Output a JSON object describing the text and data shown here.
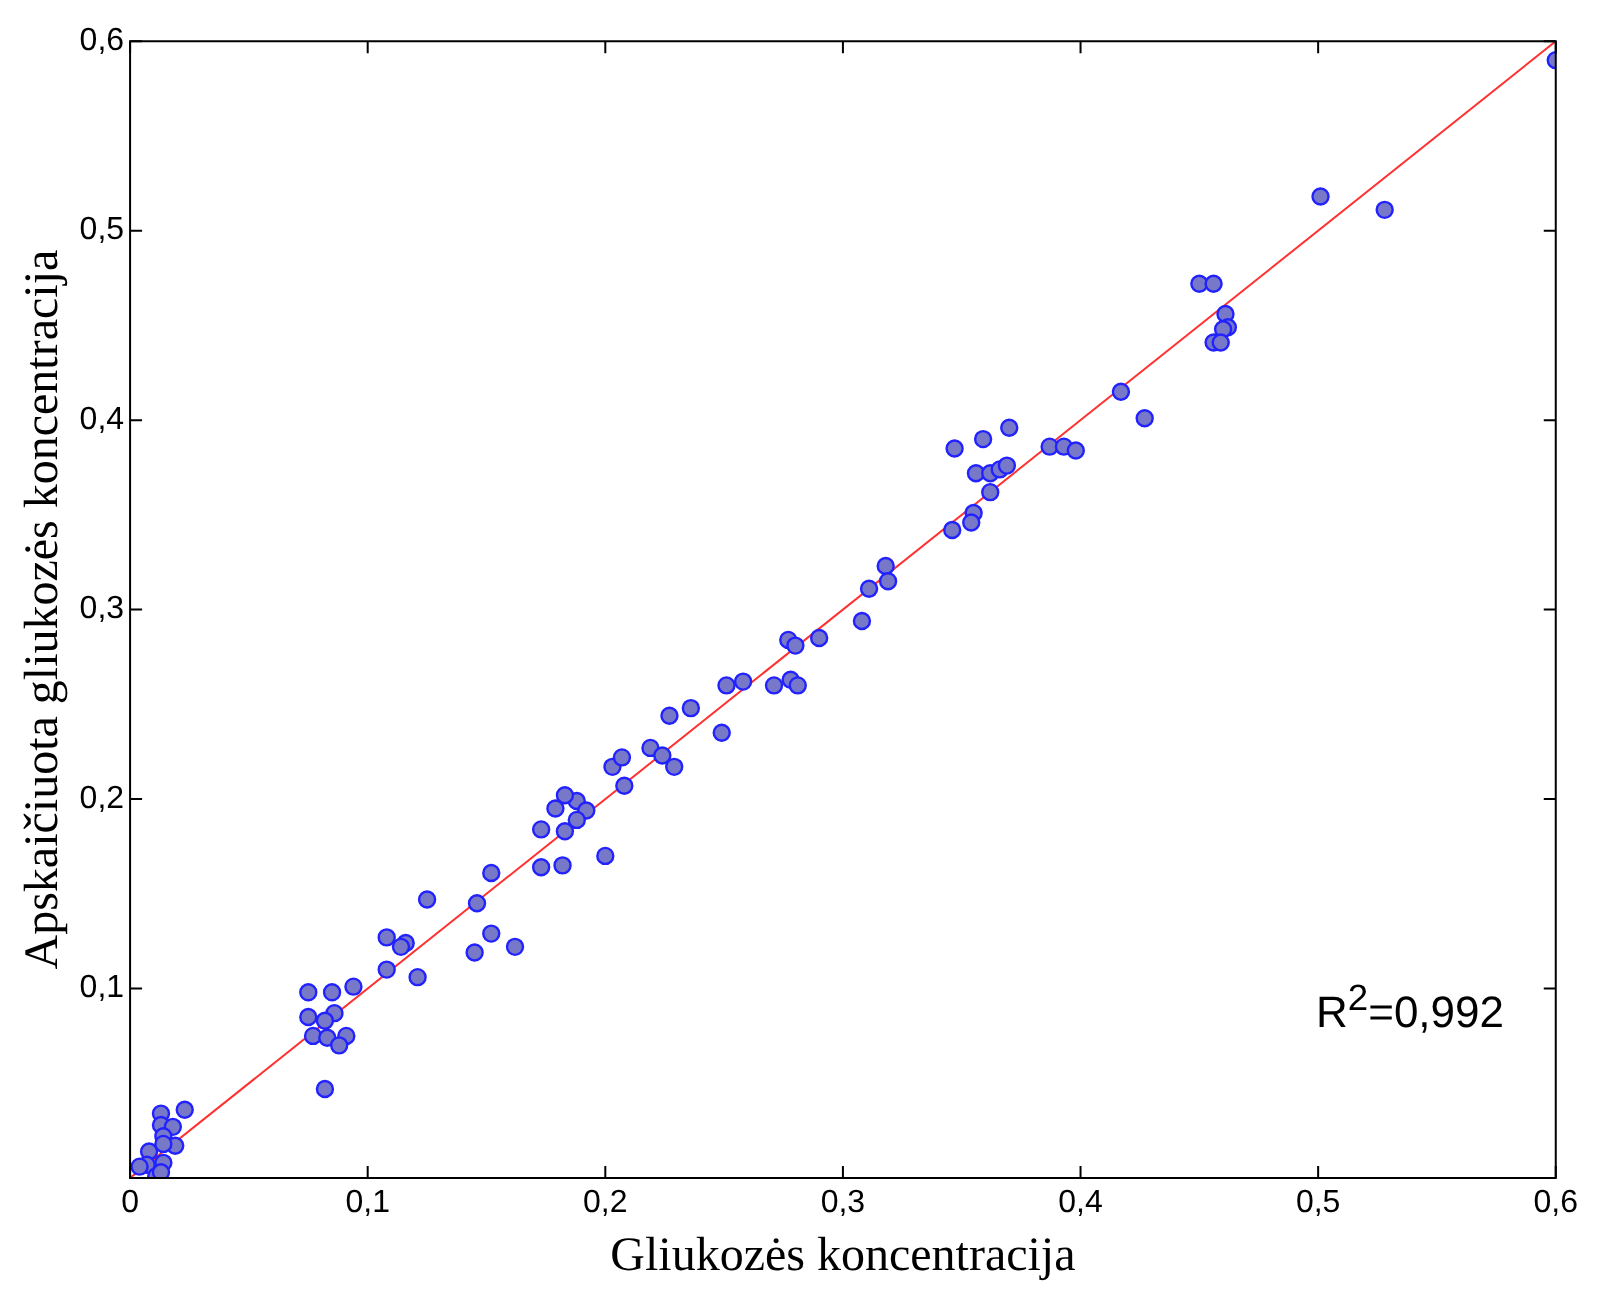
{
  "chart_data": {
    "type": "scatter",
    "xlabel": "Gliukozės koncentracija",
    "ylabel": "Apskaičiuota gliukozės koncentracija",
    "xlim": [
      0,
      0.6
    ],
    "ylim": [
      0,
      0.6
    ],
    "xticks": [
      0,
      {
        "value": 0.1,
        "label": "0,1"
      },
      {
        "value": 0.2,
        "label": "0,2"
      },
      {
        "value": 0.3,
        "label": "0,3"
      },
      {
        "value": 0.4,
        "label": "0,4"
      },
      {
        "value": 0.5,
        "label": "0,5"
      },
      {
        "value": 0.6,
        "label": "0,6"
      }
    ],
    "yticks": [
      {
        "value": 0,
        "label": null
      },
      {
        "value": 0.1,
        "label": "0,1"
      },
      {
        "value": 0.2,
        "label": "0,2"
      },
      {
        "value": 0.3,
        "label": "0,3"
      },
      {
        "value": 0.4,
        "label": "0,4"
      },
      {
        "value": 0.5,
        "label": "0,5"
      },
      {
        "value": 0.6,
        "label": "0,6"
      }
    ],
    "grid": false,
    "legend": false,
    "annotations": [
      "R$^{2}$=0,992"
    ],
    "series": [
      {
        "marker": "circle",
        "color": "#7878c8",
        "x": [
          0.501,
          0.528,
          0.45,
          0.456,
          0.461,
          0.462,
          0.46,
          0.456,
          0.459,
          0.417,
          0.427,
          0.387,
          0.393,
          0.398,
          0.6,
          0.347,
          0.359,
          0.37,
          0.356,
          0.362,
          0.366,
          0.369,
          0.362,
          0.355,
          0.354,
          0.346,
          0.318,
          0.319,
          0.311,
          0.308,
          0.29,
          0.277,
          0.28,
          0.271,
          0.278,
          0.281,
          0.251,
          0.258,
          0.249,
          0.236,
          0.227,
          0.203,
          0.207,
          0.219,
          0.224,
          0.229,
          0.208,
          0.188,
          0.192,
          0.183,
          0.179,
          0.188,
          0.183,
          0.173,
          0.2,
          0.173,
          0.182,
          0.152,
          0.146,
          0.152,
          0.145,
          0.162,
          0.125,
          0.108,
          0.116,
          0.114,
          0.108,
          0.121,
          0.094,
          0.075,
          0.085,
          0.075,
          0.086,
          0.082,
          0.077,
          0.083,
          0.091,
          0.088,
          0.082,
          0.023,
          0.013,
          0.013,
          0.018,
          0.014,
          0.019,
          0.008,
          0.014,
          0.007,
          0.014,
          0.011,
          0.004,
          0.013
        ],
        "values": [
          0.518,
          0.511,
          0.472,
          0.472,
          0.456,
          0.449,
          0.448,
          0.441,
          0.441,
          0.415,
          0.401,
          0.386,
          0.386,
          0.384,
          0.59,
          0.385,
          0.39,
          0.396,
          0.372,
          0.372,
          0.374,
          0.376,
          0.362,
          0.351,
          0.346,
          0.342,
          0.323,
          0.315,
          0.311,
          0.294,
          0.285,
          0.284,
          0.281,
          0.26,
          0.263,
          0.26,
          0.26,
          0.262,
          0.235,
          0.248,
          0.244,
          0.217,
          0.222,
          0.227,
          0.223,
          0.217,
          0.207,
          0.199,
          0.194,
          0.202,
          0.195,
          0.189,
          0.183,
          0.184,
          0.17,
          0.164,
          0.165,
          0.161,
          0.145,
          0.129,
          0.119,
          0.122,
          0.147,
          0.127,
          0.124,
          0.122,
          0.11,
          0.106,
          0.101,
          0.098,
          0.098,
          0.085,
          0.087,
          0.083,
          0.075,
          0.074,
          0.075,
          0.07,
          0.047,
          0.036,
          0.034,
          0.028,
          0.027,
          0.022,
          0.017,
          0.014,
          0.018,
          0.007,
          0.008,
          0.001,
          0.006,
          0.003
        ]
      },
      {
        "type": "line",
        "color": "#ff3030",
        "x": [
          0,
          0.6
        ],
        "values": [
          0,
          0.6
        ]
      }
    ]
  }
}
